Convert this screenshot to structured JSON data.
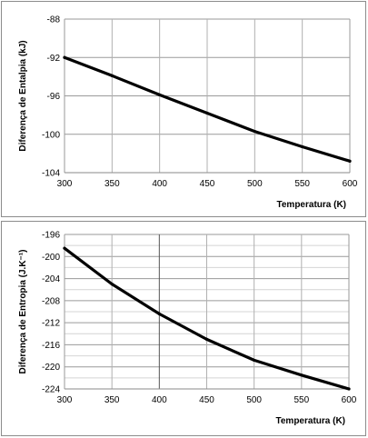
{
  "chart_data": [
    {
      "type": "line",
      "title": "",
      "xlabel": "Temperatura (K)",
      "ylabel": "Diferença de Entalpia (kJ)",
      "xlim": [
        300,
        600
      ],
      "ylim": [
        -104,
        -88
      ],
      "xticks": [
        300,
        350,
        400,
        450,
        500,
        550,
        600
      ],
      "yticks": [
        -88,
        -92,
        -96,
        -100,
        -104
      ],
      "grid": true,
      "series": [
        {
          "x": [
            300,
            350,
            400,
            450,
            500,
            550,
            600
          ],
          "y": [
            -92.0,
            -93.9,
            -95.9,
            -97.8,
            -99.7,
            -101.3,
            -102.8
          ]
        }
      ]
    },
    {
      "type": "line",
      "title": "",
      "xlabel": "Temperatura (K)",
      "ylabel": "Diferença de Entropia (J.K⁻¹)",
      "xlim": [
        300,
        600
      ],
      "ylim": [
        -224,
        -196
      ],
      "xticks": [
        300,
        350,
        400,
        450,
        500,
        550,
        600
      ],
      "yticks": [
        -196,
        -200,
        -204,
        -208,
        -212,
        -216,
        -220,
        -224
      ],
      "grid": true,
      "series": [
        {
          "x": [
            300,
            350,
            400,
            450,
            500,
            550,
            600
          ],
          "y": [
            -198.5,
            -205.0,
            -210.4,
            -215.0,
            -218.8,
            -221.5,
            -224.0
          ]
        }
      ]
    }
  ]
}
